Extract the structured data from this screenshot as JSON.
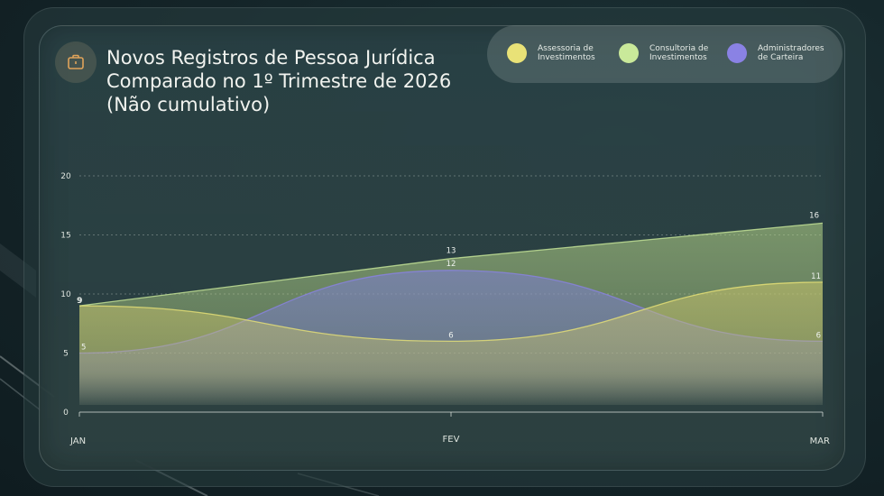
{
  "title": "Novos Registros de Pessoa Jurídica\nComparado no 1º Trimestre de 2026\n(Não cumulativo)",
  "title_icon": "briefcase-icon",
  "legend": [
    {
      "label": "Assessoria de Investimentos",
      "color": "#e9e277"
    },
    {
      "label": "Consultoria de Investimentos",
      "color": "#c9e99a"
    },
    {
      "label": "Administradores de Carteira",
      "color": "#8a82e4"
    }
  ],
  "chart_data": {
    "type": "area",
    "categories": [
      "JAN",
      "FEV",
      "MAR"
    ],
    "ylim": [
      0,
      20
    ],
    "yticks": [
      0,
      5,
      10,
      15,
      20
    ],
    "grid": true,
    "series": [
      {
        "name": "Consultoria de Investimentos",
        "values": [
          9,
          13,
          16
        ],
        "labels": [
          "9",
          "13",
          "16"
        ],
        "color": "#c9e99a",
        "fill": "#b9d98a",
        "curve": "linear"
      },
      {
        "name": "Administradores de Carteira",
        "values": [
          5,
          12,
          6
        ],
        "labels": [
          "5",
          "12",
          "6"
        ],
        "color": "#8a82e4",
        "fill": "#7d7ed6",
        "curve": "smooth"
      },
      {
        "name": "Assessoria de Investimentos",
        "values": [
          9,
          6,
          11
        ],
        "labels": [
          "9",
          "6",
          "11"
        ],
        "color": "#e9e277",
        "fill": "#c9c46a",
        "curve": "smooth"
      }
    ]
  }
}
